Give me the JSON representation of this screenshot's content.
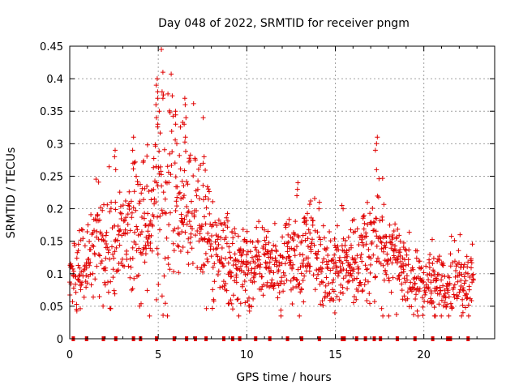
{
  "chart_data": {
    "type": "scatter",
    "title": "Day 048 of 2022, SRMTID for receiver pngm",
    "xlabel": "GPS time / hours",
    "ylabel": "SRMTID / TECUs",
    "xlim": [
      0,
      24
    ],
    "ylim": [
      0,
      0.45
    ],
    "xticks": [
      0,
      5,
      10,
      15,
      20
    ],
    "xtick_labels": [
      "0",
      "5",
      "10",
      "15",
      "20"
    ],
    "yticks": [
      0,
      0.05,
      0.1,
      0.15,
      0.2,
      0.25,
      0.3,
      0.35,
      0.4,
      0.45
    ],
    "ytick_labels": [
      "0",
      "0.05",
      "0.1",
      "0.15",
      "0.2",
      "0.25",
      "0.3",
      "0.35",
      "0.4",
      "0.45"
    ],
    "grid": true,
    "marker": "+",
    "color": "#e00000",
    "envelope": {
      "description": "approximate running median and spread of SRMTID vs time",
      "t": [
        0.0,
        0.5,
        1.0,
        1.5,
        2.0,
        2.5,
        3.0,
        3.5,
        4.0,
        4.5,
        5.0,
        5.5,
        6.0,
        6.5,
        7.0,
        7.5,
        8.0,
        8.5,
        9.0,
        9.5,
        10.0,
        10.5,
        11.0,
        11.5,
        12.0,
        12.5,
        13.0,
        13.5,
        14.0,
        14.5,
        15.0,
        15.5,
        16.0,
        16.5,
        17.0,
        17.5,
        18.0,
        18.5,
        19.0,
        19.5,
        20.0,
        20.5,
        21.0,
        21.5,
        22.0,
        22.5,
        22.8
      ],
      "median": [
        0.1,
        0.11,
        0.12,
        0.14,
        0.15,
        0.15,
        0.16,
        0.17,
        0.18,
        0.19,
        0.22,
        0.23,
        0.22,
        0.21,
        0.2,
        0.17,
        0.16,
        0.14,
        0.12,
        0.11,
        0.11,
        0.12,
        0.12,
        0.11,
        0.11,
        0.12,
        0.13,
        0.14,
        0.12,
        0.11,
        0.11,
        0.11,
        0.11,
        0.12,
        0.14,
        0.15,
        0.13,
        0.12,
        0.1,
        0.09,
        0.09,
        0.09,
        0.08,
        0.08,
        0.09,
        0.09,
        0.09
      ],
      "spread": [
        0.035,
        0.04,
        0.04,
        0.045,
        0.05,
        0.05,
        0.05,
        0.05,
        0.06,
        0.06,
        0.08,
        0.08,
        0.07,
        0.07,
        0.06,
        0.05,
        0.05,
        0.04,
        0.04,
        0.035,
        0.035,
        0.035,
        0.035,
        0.035,
        0.035,
        0.04,
        0.045,
        0.045,
        0.04,
        0.035,
        0.035,
        0.035,
        0.035,
        0.04,
        0.05,
        0.05,
        0.04,
        0.035,
        0.03,
        0.03,
        0.03,
        0.03,
        0.025,
        0.025,
        0.03,
        0.03,
        0.03
      ]
    },
    "spikes": [
      {
        "t": 4.9,
        "values": [
          0.4,
          0.39,
          0.36,
          0.34,
          0.37
        ]
      },
      {
        "t": 5.25,
        "values": [
          0.445,
          0.41,
          0.38,
          0.37
        ]
      },
      {
        "t": 5.0,
        "values": [
          0.38,
          0.33,
          0.35
        ]
      },
      {
        "t": 6.5,
        "values": [
          0.37,
          0.34,
          0.33,
          0.31,
          0.36
        ]
      },
      {
        "t": 6.0,
        "values": [
          0.35,
          0.33,
          0.3
        ]
      },
      {
        "t": 7.6,
        "values": [
          0.34,
          0.28,
          0.27
        ]
      },
      {
        "t": 3.6,
        "values": [
          0.31,
          0.29,
          0.27
        ]
      },
      {
        "t": 2.6,
        "values": [
          0.29,
          0.28,
          0.26
        ]
      },
      {
        "t": 17.3,
        "values": [
          0.31,
          0.3,
          0.29,
          0.26
        ]
      },
      {
        "t": 12.9,
        "values": [
          0.24,
          0.23,
          0.22
        ]
      },
      {
        "t": 14.1,
        "values": [
          0.21,
          0.2
        ]
      },
      {
        "t": 15.4,
        "values": [
          0.205,
          0.2
        ]
      }
    ],
    "zero_marks_t": [
      0.2,
      0.95,
      1.9,
      2.6,
      3.6,
      4.0,
      4.9,
      5.9,
      6.6,
      7.1,
      7.7,
      8.7,
      9.2,
      9.6,
      10.5,
      11.3,
      12.3,
      13.1,
      14.1,
      15.4,
      15.5,
      16.2,
      16.7,
      17.2,
      17.55,
      18.5,
      19.5,
      20.5,
      21.35,
      21.5,
      22.5
    ]
  }
}
